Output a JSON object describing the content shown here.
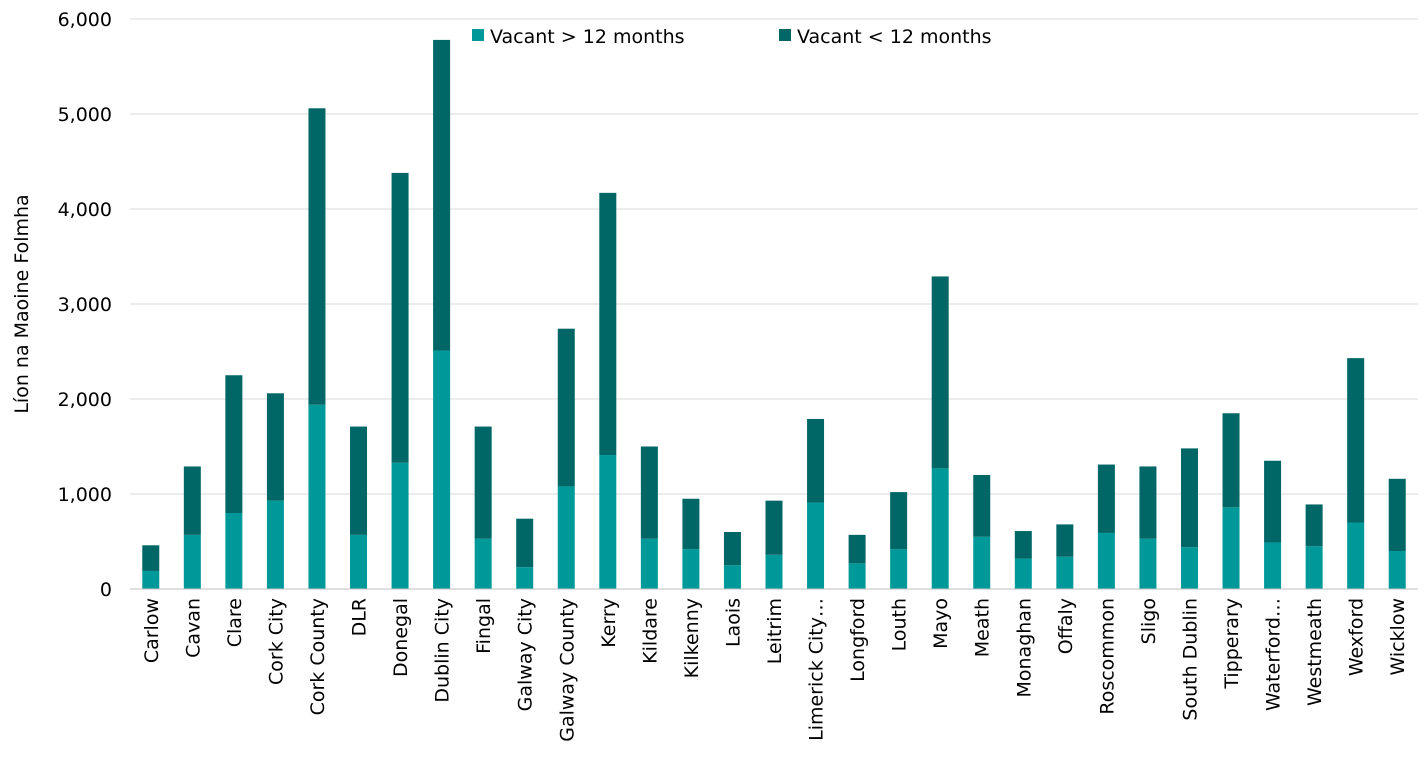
{
  "chart_data": {
    "type": "bar",
    "stacked": true,
    "title": "",
    "xlabel": "",
    "ylabel": "Líon na Maoine Folmha",
    "ylim": [
      0,
      6000
    ],
    "yticks": [
      0,
      1000,
      2000,
      3000,
      4000,
      5000,
      6000
    ],
    "ytick_labels": [
      "0",
      "1,000",
      "2,000",
      "3,000",
      "4,000",
      "5,000",
      "6,000"
    ],
    "grid": true,
    "legend_position": "top",
    "categories": [
      "Carlow",
      "Cavan",
      "Clare",
      "Cork City",
      "Cork County",
      "DLR",
      "Donegal",
      "Dublin City",
      "Fingal",
      "Galway City",
      "Galway County",
      "Kerry",
      "Kildare",
      "Kilkenny",
      "Laois",
      "Leitrim",
      "Limerick City…",
      "Longford",
      "Louth",
      "Mayo",
      "Meath",
      "Monaghan",
      "Offaly",
      "Roscommon",
      "Sligo",
      "South Dublin",
      "Tipperary",
      "Waterford…",
      "Westmeath",
      "Wexford",
      "Wicklow"
    ],
    "series": [
      {
        "name": "Vacant > 12 months",
        "color": "#009999",
        "values": [
          190,
          570,
          800,
          930,
          1940,
          570,
          1330,
          2510,
          530,
          230,
          1080,
          1410,
          530,
          420,
          250,
          360,
          910,
          270,
          420,
          1270,
          550,
          320,
          340,
          590,
          530,
          440,
          860,
          490,
          450,
          700,
          400
        ]
      },
      {
        "name": "Vacant < 12 months",
        "color": "#006666",
        "values": [
          270,
          720,
          1450,
          1130,
          3120,
          1140,
          3050,
          3270,
          1180,
          510,
          1660,
          2760,
          970,
          530,
          350,
          570,
          880,
          300,
          600,
          2020,
          650,
          290,
          340,
          720,
          760,
          1040,
          990,
          860,
          440,
          1730,
          760
        ]
      }
    ]
  }
}
